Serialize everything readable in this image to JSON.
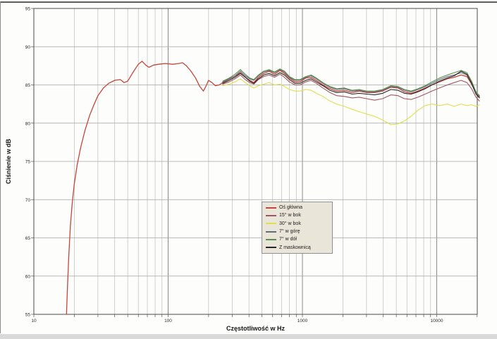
{
  "figure": {
    "x_axis_title": "Częstotliwość w Hz",
    "y_axis_title": "Ciśnienie w dB",
    "x_tick_labels": [
      "10",
      "100",
      "1000",
      "10000"
    ],
    "y_tick_labels": [
      "95",
      "90",
      "85",
      "80",
      "75",
      "70",
      "65",
      "60",
      "55"
    ]
  },
  "legend": {
    "entries": [
      {
        "label": "Oś główna",
        "color": "#c4453a"
      },
      {
        "label": "15° w bok",
        "color": "#a05560"
      },
      {
        "label": "30° w bok",
        "color": "#e0e04e"
      },
      {
        "label": "7° w górę",
        "color": "#5e6e7c"
      },
      {
        "label": "7° w dół",
        "color": "#5f8f4f"
      },
      {
        "label": "Z maskownicą",
        "color": "#262626"
      }
    ]
  },
  "chart_data": {
    "type": "line",
    "title": "",
    "xlabel": "Częstotliwość w Hz",
    "ylabel": "Ciśnienie w dB",
    "x_scale": "log",
    "xlim": [
      10,
      21500
    ],
    "ylim": [
      55,
      95
    ],
    "y_ticks": [
      55,
      60,
      65,
      70,
      75,
      80,
      85,
      90,
      95
    ],
    "x_decade_ticks": [
      10,
      100,
      1000,
      10000
    ],
    "grid": true,
    "legend_position": "center",
    "series": [
      {
        "name": "Oś główna",
        "points": [
          [
            17.5,
            55
          ],
          [
            17.8,
            58.5
          ],
          [
            18.2,
            62.5
          ],
          [
            18.7,
            66.5
          ],
          [
            19.3,
            69.5
          ],
          [
            20,
            72
          ],
          [
            21,
            74.5
          ],
          [
            22.3,
            76.8
          ],
          [
            24,
            79
          ],
          [
            26,
            81
          ],
          [
            28,
            82.4
          ],
          [
            30,
            83.6
          ],
          [
            33,
            84.6
          ],
          [
            36,
            85.2
          ],
          [
            40,
            85.6
          ],
          [
            44,
            85.7
          ],
          [
            47,
            85.3
          ],
          [
            50,
            85.5
          ],
          [
            55,
            86.7
          ],
          [
            60,
            87.7
          ],
          [
            64,
            88.1
          ],
          [
            68,
            87.6
          ],
          [
            72,
            87.3
          ],
          [
            78,
            87.6
          ],
          [
            85,
            87.7
          ],
          [
            95,
            87.8
          ],
          [
            108,
            87.7
          ],
          [
            120,
            87.8
          ],
          [
            128,
            87.9
          ],
          [
            137,
            87.5
          ],
          [
            148,
            86.8
          ],
          [
            160,
            85.9
          ],
          [
            172,
            84.8
          ],
          [
            183,
            84.2
          ],
          [
            192,
            84.9
          ],
          [
            200,
            85.6
          ],
          [
            212,
            85.3
          ],
          [
            225,
            84.9
          ],
          [
            240,
            85
          ],
          [
            255,
            85.3
          ],
          [
            280,
            85.7
          ],
          [
            310,
            86.1
          ],
          [
            345,
            86.6
          ],
          [
            375,
            86
          ],
          [
            405,
            85.6
          ],
          [
            435,
            85.3
          ],
          [
            470,
            86
          ],
          [
            515,
            86.5
          ],
          [
            565,
            86.8
          ],
          [
            620,
            86.4
          ],
          [
            680,
            86.9
          ],
          [
            735,
            86.5
          ],
          [
            800,
            85.9
          ],
          [
            880,
            85.4
          ],
          [
            960,
            85.4
          ],
          [
            1060,
            85.9
          ],
          [
            1160,
            86
          ],
          [
            1270,
            85.6
          ],
          [
            1420,
            85
          ],
          [
            1600,
            84.5
          ],
          [
            1800,
            84.2
          ],
          [
            2050,
            84.3
          ],
          [
            2350,
            84
          ],
          [
            2650,
            84.2
          ],
          [
            3000,
            84
          ],
          [
            3450,
            84
          ],
          [
            3950,
            84.2
          ],
          [
            4550,
            84.7
          ],
          [
            5150,
            84.6
          ],
          [
            5750,
            84.1
          ],
          [
            6450,
            83.9
          ],
          [
            7250,
            84.2
          ],
          [
            8200,
            84.6
          ],
          [
            9200,
            85
          ],
          [
            10500,
            85.4
          ],
          [
            12000,
            85.8
          ],
          [
            13500,
            86
          ],
          [
            15200,
            86.3
          ],
          [
            16800,
            86.1
          ],
          [
            18200,
            85.1
          ],
          [
            19600,
            83.9
          ],
          [
            20800,
            83.4
          ]
        ]
      },
      {
        "name": "15° w bok",
        "points": [
          [
            255,
            85.1
          ],
          [
            285,
            85.4
          ],
          [
            315,
            85.8
          ],
          [
            345,
            86.3
          ],
          [
            375,
            85.7
          ],
          [
            405,
            85.3
          ],
          [
            435,
            85.1
          ],
          [
            470,
            85.7
          ],
          [
            515,
            86.1
          ],
          [
            565,
            86.3
          ],
          [
            620,
            86
          ],
          [
            680,
            86.4
          ],
          [
            735,
            86
          ],
          [
            800,
            85.4
          ],
          [
            880,
            85
          ],
          [
            960,
            85
          ],
          [
            1060,
            85.4
          ],
          [
            1160,
            85.6
          ],
          [
            1270,
            85.2
          ],
          [
            1420,
            84.6
          ],
          [
            1600,
            84
          ],
          [
            1800,
            83.6
          ],
          [
            2050,
            83.5
          ],
          [
            2350,
            83.3
          ],
          [
            2650,
            83.4
          ],
          [
            3000,
            83.2
          ],
          [
            3450,
            83
          ],
          [
            3950,
            83.2
          ],
          [
            4550,
            83.7
          ],
          [
            5150,
            83.6
          ],
          [
            5750,
            83.2
          ],
          [
            6450,
            83.1
          ],
          [
            7250,
            83.4
          ],
          [
            8200,
            83.8
          ],
          [
            9200,
            84.2
          ],
          [
            10500,
            84.6
          ],
          [
            12000,
            85
          ],
          [
            13500,
            85.3
          ],
          [
            15200,
            85.6
          ],
          [
            16800,
            85.3
          ],
          [
            18200,
            84.5
          ],
          [
            19600,
            83.4
          ],
          [
            20800,
            82.9
          ]
        ]
      },
      {
        "name": "30° w bok",
        "points": [
          [
            255,
            84.9
          ],
          [
            285,
            85.1
          ],
          [
            315,
            85.4
          ],
          [
            345,
            85.8
          ],
          [
            375,
            85.3
          ],
          [
            405,
            84.9
          ],
          [
            435,
            84.6
          ],
          [
            470,
            84.9
          ],
          [
            515,
            85.1
          ],
          [
            565,
            85.3
          ],
          [
            620,
            85
          ],
          [
            680,
            85.1
          ],
          [
            735,
            84.8
          ],
          [
            800,
            84.4
          ],
          [
            880,
            84.2
          ],
          [
            960,
            84.2
          ],
          [
            1060,
            84.4
          ],
          [
            1160,
            84.3
          ],
          [
            1270,
            83.9
          ],
          [
            1420,
            83.5
          ],
          [
            1600,
            82.9
          ],
          [
            1800,
            82.5
          ],
          [
            2050,
            82.2
          ],
          [
            2350,
            81.8
          ],
          [
            2650,
            81.5
          ],
          [
            3000,
            81.2
          ],
          [
            3450,
            80.9
          ],
          [
            3950,
            80.4
          ],
          [
            4550,
            79.8
          ],
          [
            5150,
            79.9
          ],
          [
            5750,
            80.3
          ],
          [
            6450,
            80.9
          ],
          [
            7250,
            81.7
          ],
          [
            8200,
            82.3
          ],
          [
            9200,
            82.5
          ],
          [
            10500,
            82.3
          ],
          [
            12000,
            82.5
          ],
          [
            13500,
            82.2
          ],
          [
            15200,
            82.5
          ],
          [
            16800,
            82.3
          ],
          [
            18200,
            82.4
          ],
          [
            19600,
            82.2
          ],
          [
            20800,
            82.4
          ]
        ]
      },
      {
        "name": "7° w górę",
        "points": [
          [
            255,
            85.4
          ],
          [
            285,
            85.8
          ],
          [
            315,
            86.2
          ],
          [
            345,
            86.8
          ],
          [
            375,
            86.2
          ],
          [
            405,
            85.8
          ],
          [
            435,
            85.6
          ],
          [
            470,
            86.2
          ],
          [
            515,
            86.7
          ],
          [
            565,
            86.9
          ],
          [
            620,
            86.6
          ],
          [
            680,
            87
          ],
          [
            735,
            86.7
          ],
          [
            800,
            86
          ],
          [
            880,
            85.6
          ],
          [
            960,
            85.6
          ],
          [
            1060,
            86
          ],
          [
            1160,
            86.2
          ],
          [
            1270,
            85.8
          ],
          [
            1420,
            85.2
          ],
          [
            1600,
            84.7
          ],
          [
            1800,
            84.4
          ],
          [
            2050,
            84.5
          ],
          [
            2350,
            84.2
          ],
          [
            2650,
            84.3
          ],
          [
            3000,
            84.1
          ],
          [
            3450,
            84.1
          ],
          [
            3950,
            84.3
          ],
          [
            4550,
            84.8
          ],
          [
            5150,
            84.7
          ],
          [
            5750,
            84.3
          ],
          [
            6450,
            84.1
          ],
          [
            7250,
            84.4
          ],
          [
            8200,
            84.8
          ],
          [
            9200,
            85.2
          ],
          [
            10500,
            85.7
          ],
          [
            12000,
            86.1
          ],
          [
            13500,
            86.3
          ],
          [
            15200,
            86.6
          ],
          [
            16800,
            86.3
          ],
          [
            18200,
            85.3
          ],
          [
            19600,
            84
          ],
          [
            20800,
            83.5
          ]
        ]
      },
      {
        "name": "7° w dół",
        "points": [
          [
            255,
            85.5
          ],
          [
            285,
            85.9
          ],
          [
            315,
            86.4
          ],
          [
            345,
            87
          ],
          [
            375,
            86.4
          ],
          [
            405,
            85.9
          ],
          [
            435,
            85.7
          ],
          [
            470,
            86.3
          ],
          [
            515,
            86.8
          ],
          [
            565,
            87
          ],
          [
            620,
            86.7
          ],
          [
            680,
            87.1
          ],
          [
            735,
            86.8
          ],
          [
            800,
            86.1
          ],
          [
            880,
            85.7
          ],
          [
            960,
            85.7
          ],
          [
            1060,
            86.1
          ],
          [
            1160,
            86.3
          ],
          [
            1270,
            85.9
          ],
          [
            1420,
            85.3
          ],
          [
            1600,
            84.8
          ],
          [
            1800,
            84.5
          ],
          [
            2050,
            84.6
          ],
          [
            2350,
            84.3
          ],
          [
            2650,
            84.4
          ],
          [
            3000,
            84.2
          ],
          [
            3450,
            84.2
          ],
          [
            3950,
            84.4
          ],
          [
            4550,
            84.9
          ],
          [
            5150,
            84.8
          ],
          [
            5750,
            84.4
          ],
          [
            6450,
            84.2
          ],
          [
            7250,
            84.5
          ],
          [
            8200,
            84.9
          ],
          [
            9200,
            85.4
          ],
          [
            10500,
            85.9
          ],
          [
            12000,
            86.3
          ],
          [
            13500,
            86.6
          ],
          [
            15200,
            86.9
          ],
          [
            16800,
            86.6
          ],
          [
            18200,
            85.5
          ],
          [
            19600,
            84.1
          ],
          [
            20800,
            83.6
          ]
        ]
      },
      {
        "name": "Z maskownicą",
        "points": [
          [
            255,
            85.2
          ],
          [
            285,
            85.6
          ],
          [
            315,
            86
          ],
          [
            345,
            86.5
          ],
          [
            375,
            86
          ],
          [
            405,
            85.5
          ],
          [
            435,
            85.2
          ],
          [
            470,
            85.8
          ],
          [
            515,
            86.3
          ],
          [
            565,
            86.5
          ],
          [
            620,
            86.2
          ],
          [
            680,
            86.6
          ],
          [
            735,
            86.3
          ],
          [
            800,
            85.7
          ],
          [
            880,
            85.2
          ],
          [
            960,
            85.2
          ],
          [
            1060,
            85.6
          ],
          [
            1160,
            85.8
          ],
          [
            1270,
            85.4
          ],
          [
            1420,
            84.9
          ],
          [
            1600,
            84.3
          ],
          [
            1800,
            84
          ],
          [
            2050,
            84.1
          ],
          [
            2350,
            83.8
          ],
          [
            2650,
            83.9
          ],
          [
            3000,
            83.8
          ],
          [
            3450,
            83.7
          ],
          [
            3950,
            83.9
          ],
          [
            4550,
            84.4
          ],
          [
            5150,
            84.3
          ],
          [
            5750,
            83.9
          ],
          [
            6450,
            83.8
          ],
          [
            7250,
            84.1
          ],
          [
            8200,
            84.5
          ],
          [
            9200,
            85
          ],
          [
            10500,
            85.5
          ],
          [
            12000,
            85.9
          ],
          [
            13500,
            86.2
          ],
          [
            15200,
            86.8
          ],
          [
            16800,
            86.4
          ],
          [
            18200,
            85.2
          ],
          [
            19600,
            83.8
          ],
          [
            20800,
            83.3
          ]
        ]
      }
    ]
  }
}
